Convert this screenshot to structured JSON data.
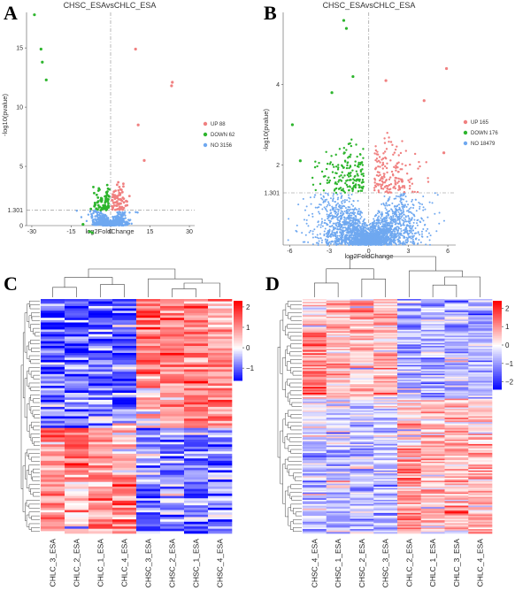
{
  "panels": {
    "A": {
      "letter": "A",
      "title": "CHSC_ESAvsCHLC_ESA",
      "xlabel": "log2FoldChange",
      "ylabel": "-log10(pvalue)",
      "xlim": [
        -32,
        32
      ],
      "ylim": [
        0,
        18
      ],
      "xticks": [
        -30,
        -15,
        0,
        15,
        30
      ],
      "yticks": [
        0,
        5,
        10,
        15
      ],
      "threshold_y": 1.301,
      "threshold_label": "1.301",
      "legend": [
        {
          "label": "UP 88",
          "color": "#F08080"
        },
        {
          "label": "DOWN 62",
          "color": "#2DB52D"
        },
        {
          "label": "NO 3156",
          "color": "#6FA8F0"
        }
      ],
      "highlight_points": {
        "down": [
          [
            -29,
            17.8
          ],
          [
            -26.5,
            14.9
          ],
          [
            -26,
            13.8
          ],
          [
            -24.5,
            12.3
          ],
          [
            -10.5,
            0.1
          ],
          [
            -8,
            -0.5
          ],
          [
            -7,
            -0.6
          ]
        ],
        "up": [
          [
            9.5,
            14.9
          ],
          [
            10.5,
            8.5
          ],
          [
            12.8,
            5.5
          ],
          [
            23.5,
            12.1
          ],
          [
            23.2,
            11.8
          ]
        ]
      }
    },
    "B": {
      "letter": "B",
      "title": "CHSC_ESAvsCHLC_ESA",
      "xlabel": "log2FoldChange",
      "ylabel": "-log10(pvalue)",
      "xlim": [
        -6.5,
        6.6
      ],
      "ylim": [
        0,
        5.8
      ],
      "xticks": [
        -6,
        -3,
        0,
        3,
        6
      ],
      "yticks": [
        2,
        4
      ],
      "threshold_y": 1.301,
      "threshold_label": "1.301",
      "legend": [
        {
          "label": "UP 165",
          "color": "#F08080"
        },
        {
          "label": "DOWN 176",
          "color": "#2DB52D"
        },
        {
          "label": "NO 18479",
          "color": "#6FA8F0"
        }
      ],
      "highlight_points": {
        "down": [
          [
            -1.9,
            5.6
          ],
          [
            -1.7,
            5.4
          ],
          [
            -1.2,
            4.2
          ],
          [
            -2.8,
            3.8
          ],
          [
            -5.8,
            3.0
          ],
          [
            -5.2,
            2.1
          ]
        ],
        "up": [
          [
            5.9,
            4.4
          ],
          [
            1.3,
            4.1
          ],
          [
            4.2,
            3.6
          ],
          [
            5.7,
            2.3
          ]
        ]
      }
    },
    "C": {
      "letter": "C",
      "columns": [
        "CHLC_3_ESA",
        "CHLC_2_ESA",
        "CHLC_1_ESA",
        "CHLC_4_ESA",
        "CHSC_3_ESA",
        "CHSC_2_ESA",
        "CHSC_1_ESA",
        "CHSC_4_ESA"
      ],
      "colorbar_ticks": [
        "2",
        "1",
        "0",
        "−1"
      ],
      "colorbar_values": [
        2,
        1,
        0,
        -1
      ],
      "colorbar_range": [
        -1.6,
        2.3
      ],
      "rows": 100
    },
    "D": {
      "letter": "D",
      "columns": [
        "CHSC_4_ESA",
        "CHSC_1_ESA",
        "CHSC_2_ESA",
        "CHSC_3_ESA",
        "CHLC_2_ESA",
        "CHLC_1_ESA",
        "CHLC_3_ESA",
        "CHLC_4_ESA"
      ],
      "colorbar_ticks": [
        "2",
        "1",
        "0",
        "−1",
        "−2"
      ],
      "colorbar_values": [
        2,
        1,
        0,
        -1,
        -2
      ],
      "colorbar_range": [
        -2.4,
        2.4
      ],
      "rows": 160
    }
  },
  "colors": {
    "up": "#F08080",
    "down": "#2DB52D",
    "no": "#6FA8F0",
    "heat_high": "#FF0000",
    "heat_mid": "#FFFFFF",
    "heat_low": "#0000FF"
  }
}
